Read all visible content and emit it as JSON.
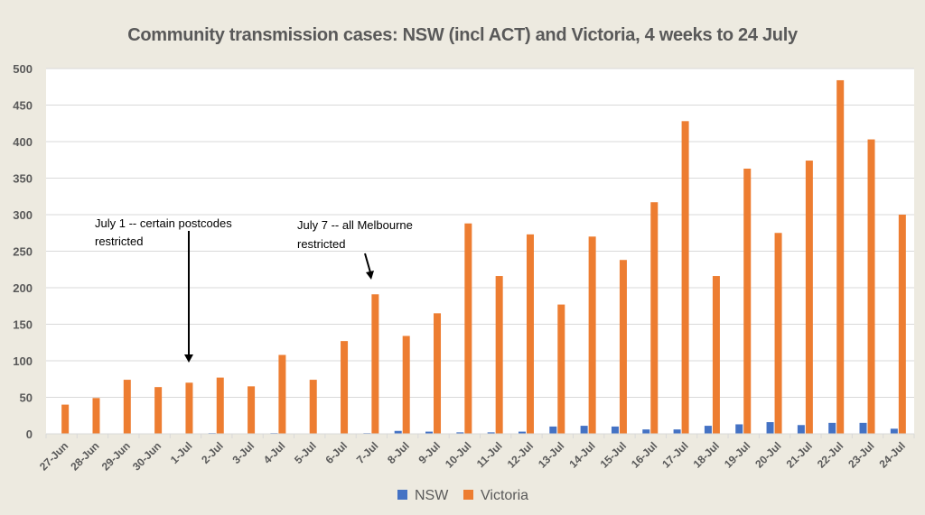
{
  "chart_data": {
    "type": "bar",
    "title": "Community transmission cases: NSW (incl ACT) and Victoria, 4 weeks to 24 July",
    "xlabel": "",
    "ylabel": "",
    "ylim": [
      0,
      500
    ],
    "yticks": [
      0,
      50,
      100,
      150,
      200,
      250,
      300,
      350,
      400,
      450,
      500
    ],
    "grid": true,
    "legend_position": "bottom-center",
    "categories": [
      "27-Jun",
      "28-Jun",
      "29-Jun",
      "30-Jun",
      "1-Jul",
      "2-Jul",
      "3-Jul",
      "4-Jul",
      "5-Jul",
      "6-Jul",
      "7-Jul",
      "8-Jul",
      "9-Jul",
      "10-Jul",
      "11-Jul",
      "12-Jul",
      "13-Jul",
      "14-Jul",
      "15-Jul",
      "16-Jul",
      "17-Jul",
      "18-Jul",
      "19-Jul",
      "20-Jul",
      "21-Jul",
      "22-Jul",
      "23-Jul",
      "24-Jul"
    ],
    "series": [
      {
        "name": "NSW",
        "color": "#4472c4",
        "values": [
          0,
          0,
          0,
          0,
          0,
          1,
          0,
          1,
          0,
          0,
          1,
          4,
          3,
          2,
          2,
          3,
          10,
          11,
          10,
          6,
          6,
          11,
          13,
          16,
          12,
          15,
          15,
          7
        ]
      },
      {
        "name": "Victoria",
        "color": "#ed7d31",
        "values": [
          40,
          49,
          74,
          64,
          70,
          77,
          65,
          108,
          74,
          127,
          191,
          134,
          165,
          288,
          216,
          273,
          177,
          270,
          238,
          317,
          428,
          216,
          363,
          275,
          374,
          484,
          403,
          300
        ]
      }
    ],
    "annotations": [
      {
        "lines": [
          "July 1 -- certain postcodes",
          "restricted"
        ],
        "points_to": "1-Jul"
      },
      {
        "lines": [
          "July 7 -- all Melbourne",
          "restricted"
        ],
        "points_to": "7-Jul"
      }
    ]
  }
}
